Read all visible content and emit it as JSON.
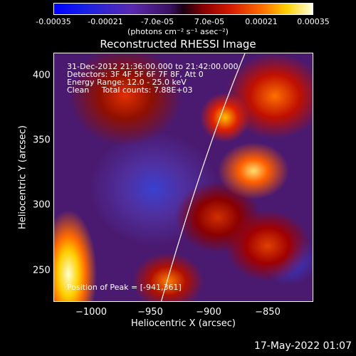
{
  "colorbar": {
    "ticks": [
      "-0.00035",
      "-0.00021",
      "-7.0e-05",
      "7.0e-05",
      "0.00021",
      "0.00035"
    ],
    "unit_label": "(photons cm⁻² s⁻¹ asec⁻²)",
    "min": -0.00035,
    "max": 0.00035
  },
  "image": {
    "title": "Reconstructed RHESSI Image",
    "info_lines": [
      "31-Dec-2012 21:36:00.000 to 21:42:00.000",
      "Detectors: 3F 4F 5F 6F 7F 8F, Att 0",
      "Energy Range: 12.0 - 25.0 keV",
      "Clean     Total counts: 7.88E+03"
    ],
    "peak_label": "Position of Peak = [-941,361]",
    "xlabel": "Heliocentric X (arcsec)",
    "ylabel": "Heliocentric Y (arcsec)",
    "xticks": [
      "−1000",
      "−950",
      "−900",
      "−850"
    ],
    "yticks": [
      "400",
      "350",
      "300",
      "250"
    ]
  },
  "footer": {
    "date": "17-May-2022 01:07"
  }
}
